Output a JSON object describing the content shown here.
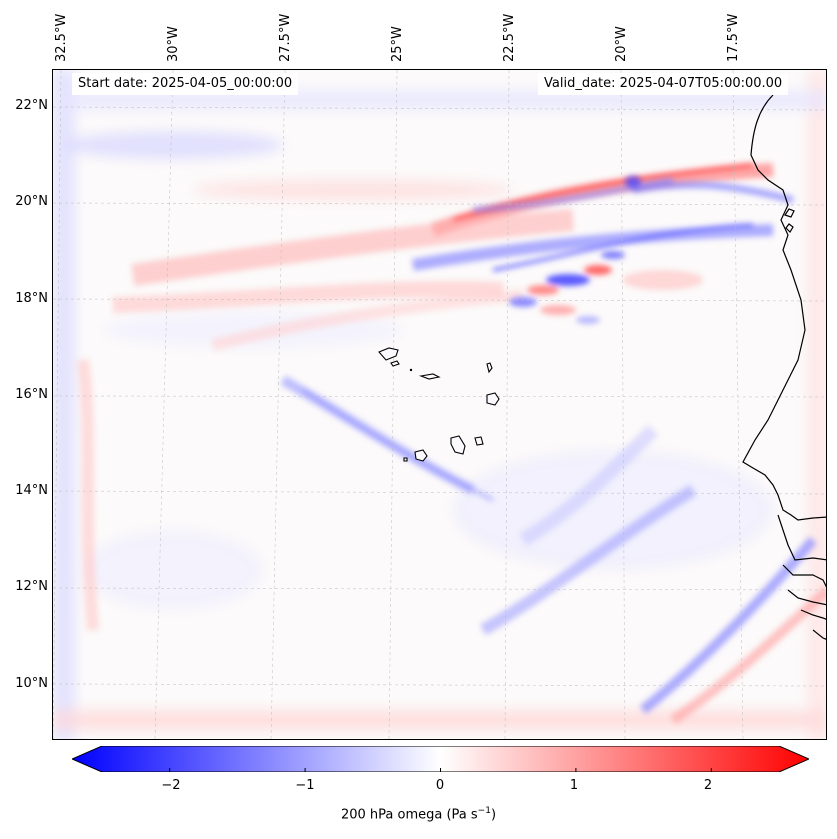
{
  "map": {
    "start_date": "Start date: 2025-04-05_00:00:00",
    "valid_date": "Valid_date: 2025-04-07T05:00:00.00",
    "lon_labels": [
      "32.5°W",
      "30°W",
      "27.5°W",
      "25°W",
      "22.5°W",
      "20°W",
      "17.5°W"
    ],
    "lat_labels": [
      "22°N",
      "20°N",
      "18°N",
      "16°N",
      "14°N",
      "12°N",
      "10°N"
    ],
    "field": "200 hPa omega",
    "colors": {
      "negative": "#0000ff",
      "zero": "#ffffff",
      "positive": "#ff0000",
      "coast": "#000000"
    }
  },
  "colorbar": {
    "ticks": [
      "−2",
      "−1",
      "0",
      "1",
      "2"
    ],
    "tick_values": [
      -2,
      -1,
      0,
      1,
      2
    ],
    "range": [
      -2.5,
      2.5
    ],
    "label_main": "200 hPa omega (Pa s",
    "label_sup": "−1",
    "label_end": ")"
  }
}
